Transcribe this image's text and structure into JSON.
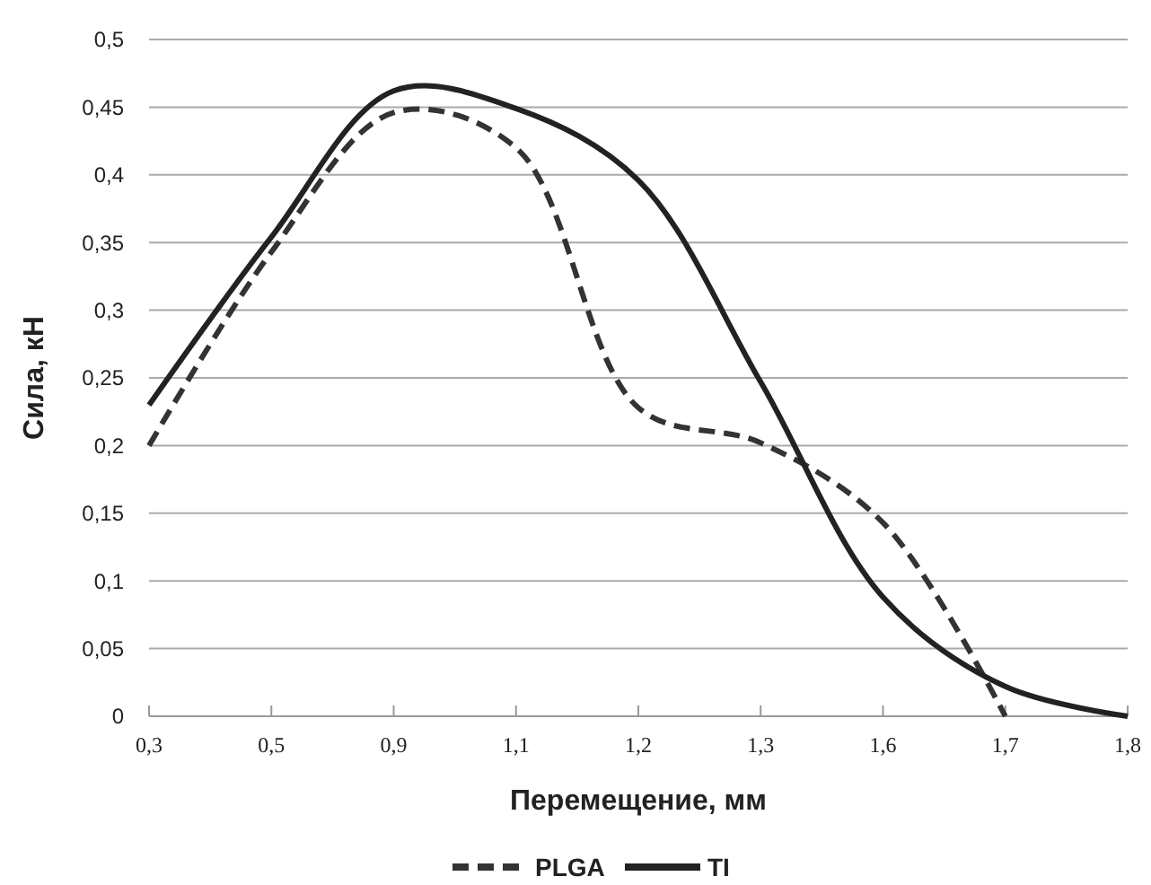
{
  "chart_data": {
    "type": "line",
    "xlabel": "Перемещение, мм",
    "ylabel": "Сила, кН",
    "categories": [
      "0,3",
      "0,5",
      "0,9",
      "1,1",
      "1,2",
      "1,3",
      "1,6",
      "1,7",
      "1,8"
    ],
    "series": [
      {
        "name": "PLGA",
        "color": "#333333",
        "line_style": "dashed",
        "values": [
          0.2,
          0.343,
          0.446,
          0.42,
          0.228,
          0.202,
          0.143,
          0,
          null
        ]
      },
      {
        "name": "TI",
        "color": "#222222",
        "line_style": "solid",
        "values": [
          0.23,
          0.354,
          0.462,
          0.449,
          0.396,
          0.247,
          0.088,
          0.022,
          0
        ]
      }
    ],
    "ylim": [
      0,
      0.5
    ],
    "yticks": [
      {
        "value": 0,
        "label": "0"
      },
      {
        "value": 0.05,
        "label": "0,05"
      },
      {
        "value": 0.1,
        "label": "0,1"
      },
      {
        "value": 0.15,
        "label": "0,15"
      },
      {
        "value": 0.2,
        "label": "0,2"
      },
      {
        "value": 0.25,
        "label": "0,25"
      },
      {
        "value": 0.3,
        "label": "0,3"
      },
      {
        "value": 0.35,
        "label": "0,35"
      },
      {
        "value": 0.4,
        "label": "0,4"
      },
      {
        "value": 0.45,
        "label": "0,45"
      },
      {
        "value": 0.5,
        "label": "0,5"
      }
    ],
    "grid": "y",
    "legend": "bottom",
    "marker": "none"
  }
}
